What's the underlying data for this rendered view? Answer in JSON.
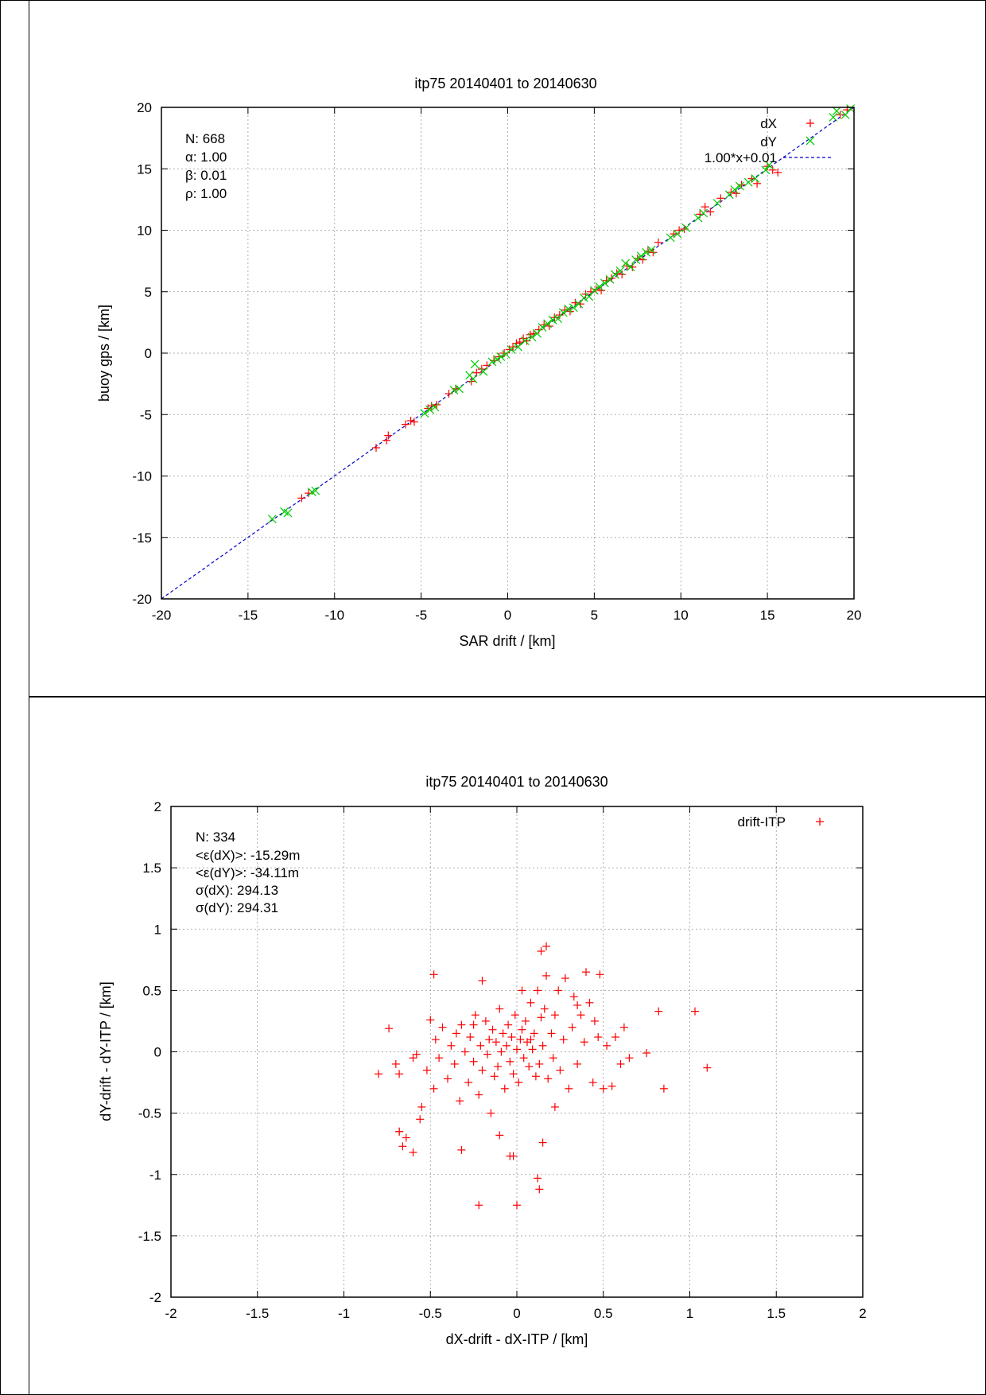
{
  "chart_data": [
    {
      "type": "scatter",
      "title": "itp75 20140401 to 20140630",
      "xlabel": "SAR drift / [km]",
      "ylabel": "buoy gps / [km]",
      "xlim": [
        -20,
        20
      ],
      "ylim": [
        -20,
        20
      ],
      "xticks": [
        "-20",
        "-15",
        "-10",
        "-5",
        "0",
        "5",
        "10",
        "15",
        "20"
      ],
      "yticks": [
        "-20",
        "-15",
        "-10",
        "-5",
        "0",
        "5",
        "10",
        "15",
        "20"
      ],
      "grid": true,
      "legend_position": "top-right",
      "stats": [
        "N: 668",
        "α: 1.00",
        "β: 0.01",
        "ρ: 1.00"
      ],
      "colors": {
        "dX": "#ff0000",
        "dY": "#00cc00",
        "fit": "#0000cc"
      },
      "fit_line": {
        "label": "1.00*x+0.01",
        "slope": 1.0,
        "intercept": 0.01
      },
      "series": [
        {
          "name": "dX",
          "marker": "plus",
          "x": [
            -11.9,
            -11.5,
            -7.6,
            -7.0,
            -6.9,
            -5.9,
            -5.6,
            -5.4,
            -4.6,
            -4.4,
            -4.1,
            -3.4,
            -3.0,
            -2.1,
            -1.8,
            -1.5,
            -1.2,
            -0.8,
            -0.5,
            -0.2,
            0.1,
            0.3,
            0.5,
            0.7,
            0.9,
            1.1,
            1.3,
            1.5,
            1.8,
            2.1,
            2.4,
            2.7,
            3.0,
            3.3,
            3.6,
            3.9,
            4.2,
            4.5,
            4.8,
            5.1,
            5.4,
            5.7,
            6.0,
            6.3,
            6.6,
            6.9,
            7.2,
            7.5,
            7.8,
            8.1,
            8.4,
            8.7,
            9.6,
            9.9,
            10.2,
            11.1,
            11.4,
            11.7,
            12.3,
            12.9,
            13.2,
            13.5,
            14.1,
            14.4,
            15.0,
            15.3,
            15.6,
            19.2,
            19.6
          ],
          "y": [
            -11.8,
            -11.4,
            -7.7,
            -7.1,
            -6.7,
            -5.8,
            -5.5,
            -5.6,
            -4.5,
            -4.3,
            -4.2,
            -3.3,
            -2.9,
            -2.3,
            -1.6,
            -1.3,
            -1.0,
            -0.6,
            -0.3,
            0.0,
            0.3,
            0.5,
            0.8,
            0.9,
            1.2,
            1.0,
            1.5,
            1.6,
            1.9,
            2.3,
            2.2,
            2.9,
            3.1,
            3.5,
            3.4,
            4.1,
            4.0,
            4.8,
            5.0,
            5.2,
            5.1,
            5.9,
            6.1,
            6.5,
            6.4,
            7.1,
            7.0,
            7.7,
            7.6,
            8.3,
            8.2,
            9.0,
            9.7,
            10.0,
            10.1,
            11.3,
            11.9,
            11.5,
            12.6,
            13.1,
            13.0,
            13.7,
            14.2,
            13.8,
            15.2,
            14.9,
            14.7,
            19.4,
            19.8
          ]
        },
        {
          "name": "dY",
          "marker": "cross",
          "x": [
            -13.6,
            -12.9,
            -12.7,
            -11.3,
            -11.1,
            -4.8,
            -4.5,
            -4.2,
            -3.1,
            -2.8,
            -2.2,
            -2.0,
            -1.9,
            -1.4,
            -0.9,
            -0.6,
            -0.4,
            -0.1,
            0.2,
            0.6,
            1.0,
            1.4,
            1.7,
            2.0,
            2.3,
            2.6,
            2.9,
            3.2,
            3.5,
            3.8,
            4.1,
            4.4,
            4.7,
            5.0,
            5.3,
            5.6,
            5.9,
            6.2,
            6.5,
            6.8,
            7.1,
            7.4,
            7.7,
            8.0,
            8.3,
            9.4,
            9.8,
            10.3,
            11.0,
            11.3,
            12.1,
            12.8,
            13.1,
            13.4,
            13.9,
            14.3,
            14.9,
            15.1,
            18.8,
            19.0,
            19.5,
            19.8
          ],
          "y": [
            -13.5,
            -12.9,
            -13.0,
            -11.3,
            -11.2,
            -4.9,
            -4.6,
            -4.4,
            -3.0,
            -2.9,
            -1.8,
            -2.1,
            -0.9,
            -1.5,
            -0.7,
            -0.5,
            -0.3,
            -0.1,
            0.3,
            0.5,
            1.0,
            1.3,
            1.6,
            2.1,
            2.4,
            2.7,
            2.8,
            3.3,
            3.6,
            3.7,
            4.0,
            4.5,
            4.6,
            5.1,
            5.4,
            5.7,
            6.0,
            6.4,
            6.7,
            7.3,
            7.0,
            7.6,
            7.9,
            8.2,
            8.4,
            9.4,
            9.7,
            10.2,
            11.0,
            11.4,
            12.2,
            12.9,
            13.3,
            13.6,
            13.9,
            14.2,
            14.9,
            15.3,
            19.2,
            19.7,
            19.4,
            19.9
          ]
        }
      ]
    },
    {
      "type": "scatter",
      "title": "itp75 20140401 to 20140630",
      "xlabel": "dX-drift - dX-ITP / [km]",
      "ylabel": "dY-drift - dY-ITP / [km]",
      "xlim": [
        -2,
        2
      ],
      "ylim": [
        -2,
        2
      ],
      "xticks": [
        "-2",
        "-1.5",
        "-1",
        "-0.5",
        "0",
        "0.5",
        "1",
        "1.5",
        "2"
      ],
      "yticks": [
        "-2",
        "-1.5",
        "-1",
        "-0.5",
        "0",
        "0.5",
        "1",
        "1.5",
        "2"
      ],
      "grid": true,
      "legend_position": "top-right",
      "stats": [
        "N: 334",
        "<ε(dX)>:  -15.29m",
        "<ε(dY)>: -34.11m",
        "σ(dX):  294.13",
        "σ(dY):  294.31"
      ],
      "colors": {
        "drift-ITP": "#ff0000"
      },
      "series": [
        {
          "name": "drift-ITP",
          "marker": "plus",
          "x": [
            -0.8,
            -0.74,
            -0.7,
            -0.68,
            -0.66,
            -0.68,
            -0.64,
            -0.6,
            -0.58,
            -0.56,
            -0.55,
            -0.52,
            -0.5,
            -0.48,
            -0.47,
            -0.45,
            -0.43,
            -0.4,
            -0.38,
            -0.36,
            -0.35,
            -0.33,
            -0.32,
            -0.3,
            -0.28,
            -0.27,
            -0.25,
            -0.24,
            -0.22,
            -0.21,
            -0.2,
            -0.18,
            -0.17,
            -0.16,
            -0.15,
            -0.14,
            -0.13,
            -0.12,
            -0.11,
            -0.1,
            -0.09,
            -0.08,
            -0.07,
            -0.06,
            -0.05,
            -0.04,
            -0.03,
            -0.02,
            -0.01,
            0.0,
            0.01,
            0.02,
            0.03,
            0.04,
            0.05,
            0.06,
            0.07,
            0.08,
            0.09,
            0.1,
            0.11,
            0.12,
            0.13,
            0.14,
            0.15,
            0.16,
            0.17,
            0.18,
            0.2,
            0.21,
            0.22,
            0.24,
            0.25,
            0.27,
            0.28,
            0.3,
            0.32,
            0.33,
            0.35,
            0.37,
            0.39,
            0.4,
            0.42,
            0.44,
            0.45,
            0.47,
            0.48,
            0.5,
            0.52,
            0.55,
            0.57,
            0.6,
            0.62,
            0.65,
            0.75,
            0.82,
            0.85,
            1.03,
            1.1,
            -0.48,
            -0.2,
            -0.04,
            0.15,
            0.12,
            0.13,
            0.14,
            -0.22,
            0.0,
            -0.02,
            -0.32,
            -0.68,
            -0.6,
            0.17,
            0.22,
            0.03,
            -0.1,
            0.08,
            -0.25,
            0.35
          ],
          "y": [
            -0.18,
            0.19,
            -0.1,
            -0.65,
            -0.77,
            -0.18,
            -0.7,
            -0.82,
            -0.02,
            -0.55,
            -0.45,
            -0.15,
            0.26,
            -0.3,
            0.1,
            -0.05,
            0.2,
            -0.22,
            0.05,
            -0.1,
            0.15,
            -0.4,
            0.22,
            0.0,
            -0.25,
            0.12,
            -0.08,
            0.3,
            -0.35,
            0.05,
            -0.15,
            0.25,
            -0.02,
            0.1,
            -0.5,
            0.18,
            -0.2,
            0.08,
            -0.12,
            0.35,
            0.0,
            0.15,
            -0.3,
            0.05,
            0.22,
            -0.08,
            0.12,
            -0.18,
            0.3,
            0.02,
            -0.25,
            0.1,
            0.18,
            -0.05,
            0.25,
            0.08,
            -0.12,
            0.4,
            0.02,
            0.15,
            -0.2,
            0.5,
            -0.1,
            0.28,
            0.05,
            0.35,
            0.62,
            -0.22,
            0.15,
            -0.05,
            0.3,
            0.5,
            -0.15,
            0.1,
            0.6,
            -0.3,
            0.2,
            0.45,
            -0.1,
            0.3,
            0.08,
            0.65,
            0.4,
            -0.25,
            0.25,
            0.12,
            0.63,
            -0.3,
            0.05,
            -0.28,
            0.12,
            -0.1,
            0.2,
            -0.05,
            -0.01,
            0.33,
            -0.3,
            0.33,
            -0.13,
            0.63,
            0.58,
            -0.85,
            -0.74,
            -1.03,
            -1.12,
            0.82,
            -1.25,
            -1.25,
            -0.85,
            -0.8,
            -0.65,
            -0.05,
            0.86,
            -0.45,
            0.5,
            -0.68,
            0.1,
            0.22,
            0.38
          ]
        }
      ]
    }
  ]
}
